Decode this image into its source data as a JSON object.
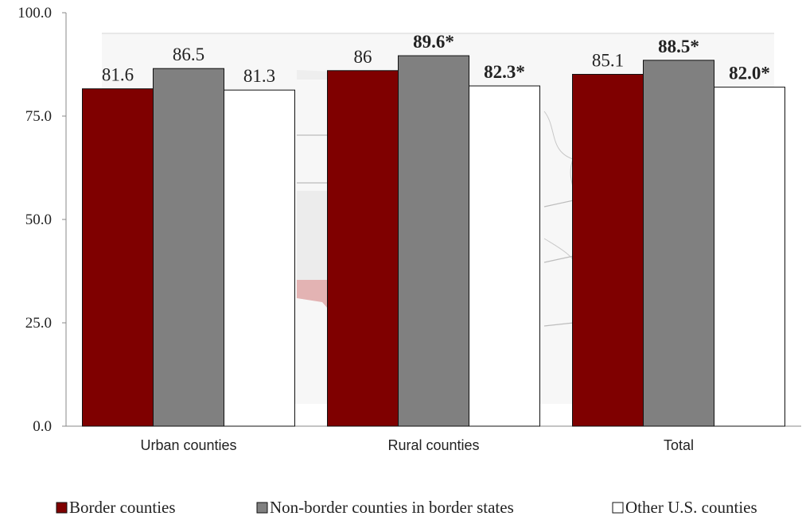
{
  "chart_data": {
    "type": "bar",
    "categories": [
      "Urban counties",
      "Rural counties",
      "Total"
    ],
    "series": [
      {
        "name": "Border counties",
        "values": [
          81.6,
          86,
          85.1
        ],
        "labels": [
          "81.6",
          "86",
          "85.1"
        ],
        "bold": [
          false,
          false,
          false
        ],
        "color": "#7f0000"
      },
      {
        "name": "Non-border counties in border states",
        "values": [
          86.5,
          89.6,
          88.5
        ],
        "labels": [
          "86.5",
          "89.6*",
          "88.5*"
        ],
        "bold": [
          false,
          true,
          true
        ],
        "color": "#808080"
      },
      {
        "name": "Other U.S. counties",
        "values": [
          81.3,
          82.3,
          82.0
        ],
        "labels": [
          "81.3",
          "82.3*",
          "82.0*"
        ],
        "bold": [
          false,
          true,
          true
        ],
        "color": "#ffffff"
      }
    ],
    "yticks": [
      "0.0",
      "25.0",
      "50.0",
      "75.0",
      "100.0"
    ],
    "ylim": [
      0,
      100
    ],
    "grid": false,
    "legend_position": "bottom",
    "background_image": "faint US map showing the southwest border region highlighted"
  }
}
